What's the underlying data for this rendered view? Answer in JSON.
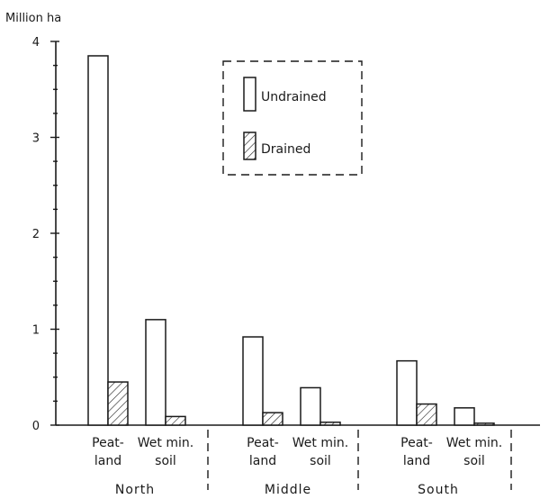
{
  "chart_data": {
    "type": "bar",
    "ylabel": "Million ha",
    "ylim": [
      0,
      4
    ],
    "yticks": [
      "0",
      "1",
      "2",
      "3",
      "4"
    ],
    "legend": {
      "placement": "top-center",
      "items": [
        {
          "key": "undrained",
          "label": "Undrained",
          "pattern": "white"
        },
        {
          "key": "drained",
          "label": "Drained",
          "pattern": "hatched"
        }
      ]
    },
    "series": [
      {
        "name": "Undrained",
        "values": [
          3.85,
          1.1,
          0.92,
          0.39,
          0.67,
          0.18
        ]
      },
      {
        "name": "Drained",
        "values": [
          0.45,
          0.09,
          0.13,
          0.03,
          0.22,
          0.02
        ]
      }
    ],
    "categories": [
      {
        "label_line1": "Peat-",
        "label_line2": "land"
      },
      {
        "label_line1": "Wet min.",
        "label_line2": "soil"
      },
      {
        "label_line1": "Peat-",
        "label_line2": "land"
      },
      {
        "label_line1": "Wet min.",
        "label_line2": "soil"
      },
      {
        "label_line1": "Peat-",
        "label_line2": "land"
      },
      {
        "label_line1": "Wet min.",
        "label_line2": "soil"
      }
    ],
    "groups": [
      "North",
      "Middle",
      "South"
    ]
  }
}
